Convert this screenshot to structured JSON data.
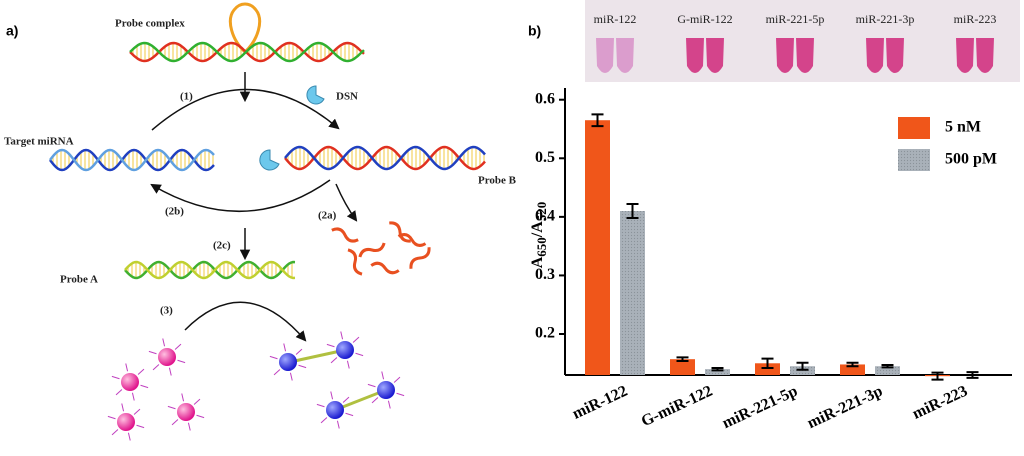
{
  "diagram": {
    "panel_label": "a)",
    "probe_complex": "Probe complex",
    "step1": "(1)",
    "dsn": "DSN",
    "target": "Target miRNA",
    "probe_b": "Probe B",
    "step2b": "(2b)",
    "step2a": "(2a)",
    "step2c": "(2c)",
    "probe_a": "Probe A",
    "step3": "(3)"
  },
  "photo": {
    "panel_label": "b)",
    "labels": [
      "miR-122",
      "G-miR-122",
      "miR-221-5p",
      "miR-221-3p",
      "miR-223"
    ]
  },
  "chart_data": {
    "type": "bar",
    "y_label_parts": [
      "A",
      "650",
      "/A",
      "520"
    ],
    "categories": [
      "miR-122",
      "G-miR-122",
      "miR-221-5p",
      "miR-221-3p",
      "miR-223"
    ],
    "series": [
      {
        "name": "5 nM",
        "color": "#f0561a",
        "values": [
          0.565,
          0.157,
          0.15,
          0.148,
          0.128
        ],
        "errors": [
          0.01,
          0.003,
          0.008,
          0.003,
          0.006
        ]
      },
      {
        "name": "500 pM",
        "color": "#a9b1b9",
        "values": [
          0.41,
          0.14,
          0.145,
          0.145,
          0.13
        ],
        "errors": [
          0.012,
          0.002,
          0.006,
          0.002,
          0.005
        ]
      }
    ],
    "ylim": [
      0.13,
      0.62
    ],
    "yticks": [
      0.2,
      0.3,
      0.4,
      0.5,
      0.6
    ],
    "grid": false,
    "legend": "upper right"
  }
}
